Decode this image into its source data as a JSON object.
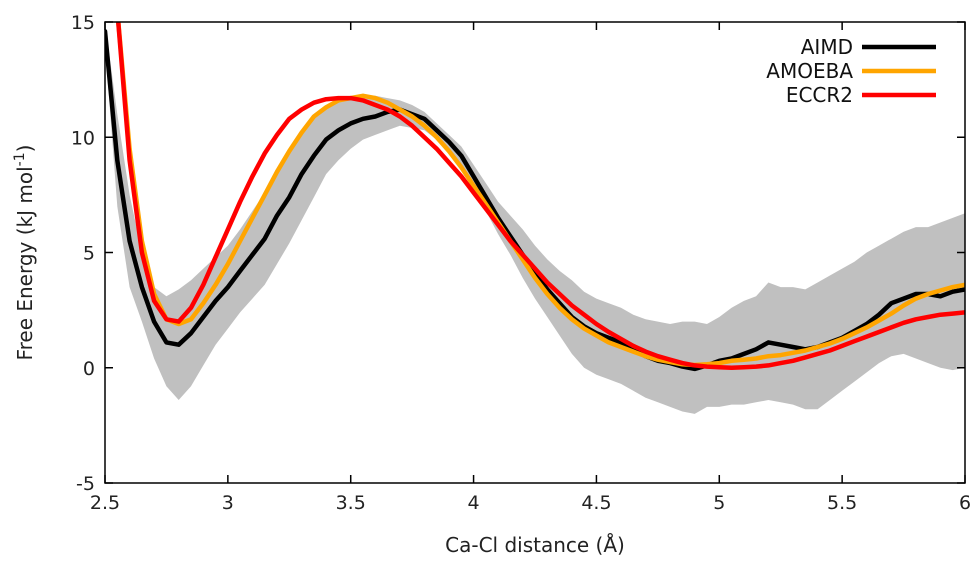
{
  "chart_data": {
    "type": "line",
    "title": "",
    "xlabel": "Ca-Cl distance (Å)",
    "ylabel": "Free Energy (kJ mol",
    "ylabel_sup": "-1",
    "ylabel_close": ")",
    "xlim": [
      2.5,
      6
    ],
    "ylim": [
      -5,
      15
    ],
    "xticks": [
      2.5,
      3,
      3.5,
      4,
      4.5,
      5,
      5.5,
      6
    ],
    "xtick_labels": [
      "2.5",
      "3",
      "3.5",
      "4",
      "4.5",
      "5",
      "5.5",
      "6"
    ],
    "yticks": [
      -5,
      0,
      5,
      10,
      15
    ],
    "ytick_labels": [
      "-5",
      "0",
      "5",
      "10",
      "15"
    ],
    "grid": false,
    "legend_position": "top-right",
    "colors": {
      "AIMD": "#000000",
      "AMOEBA": "#ffa500",
      "ECCR2": "#ff0000",
      "band": "#c0c0c0"
    },
    "series": [
      {
        "name": "AIMD",
        "x": [
          2.5,
          2.55,
          2.6,
          2.65,
          2.7,
          2.75,
          2.8,
          2.85,
          2.9,
          2.95,
          3.0,
          3.05,
          3.1,
          3.15,
          3.2,
          3.25,
          3.3,
          3.35,
          3.4,
          3.45,
          3.5,
          3.55,
          3.6,
          3.65,
          3.7,
          3.75,
          3.8,
          3.85,
          3.9,
          3.95,
          4.0,
          4.05,
          4.1,
          4.15,
          4.2,
          4.25,
          4.3,
          4.35,
          4.4,
          4.45,
          4.5,
          4.55,
          4.6,
          4.65,
          4.7,
          4.75,
          4.8,
          4.85,
          4.9,
          4.95,
          5.0,
          5.05,
          5.1,
          5.15,
          5.2,
          5.25,
          5.3,
          5.35,
          5.4,
          5.45,
          5.5,
          5.55,
          5.6,
          5.65,
          5.7,
          5.75,
          5.8,
          5.85,
          5.9,
          5.95,
          6.0
        ],
        "y": [
          14.6,
          9.0,
          5.5,
          3.5,
          2.0,
          1.1,
          1.0,
          1.5,
          2.2,
          2.9,
          3.5,
          4.2,
          4.9,
          5.6,
          6.6,
          7.4,
          8.4,
          9.2,
          9.9,
          10.3,
          10.6,
          10.8,
          10.9,
          11.1,
          11.2,
          11.0,
          10.8,
          10.3,
          9.8,
          9.2,
          8.3,
          7.4,
          6.5,
          5.7,
          4.9,
          4.1,
          3.4,
          2.8,
          2.2,
          1.8,
          1.5,
          1.3,
          1.1,
          0.8,
          0.5,
          0.3,
          0.2,
          0.05,
          -0.05,
          0.1,
          0.3,
          0.4,
          0.6,
          0.8,
          1.1,
          1.0,
          0.9,
          0.8,
          0.9,
          1.1,
          1.3,
          1.6,
          1.9,
          2.3,
          2.8,
          3.0,
          3.2,
          3.2,
          3.1,
          3.3,
          3.4
        ]
      },
      {
        "name": "AMOEBA",
        "x": [
          2.5,
          2.55,
          2.6,
          2.65,
          2.7,
          2.75,
          2.8,
          2.85,
          2.9,
          2.95,
          3.0,
          3.05,
          3.1,
          3.15,
          3.2,
          3.25,
          3.3,
          3.35,
          3.4,
          3.45,
          3.5,
          3.55,
          3.6,
          3.65,
          3.7,
          3.75,
          3.8,
          3.85,
          3.9,
          3.95,
          4.0,
          4.05,
          4.1,
          4.15,
          4.2,
          4.25,
          4.3,
          4.35,
          4.4,
          4.45,
          4.5,
          4.55,
          4.6,
          4.65,
          4.7,
          4.75,
          4.8,
          4.85,
          4.9,
          4.95,
          5.0,
          5.05,
          5.1,
          5.15,
          5.2,
          5.25,
          5.3,
          5.35,
          5.4,
          5.45,
          5.5,
          5.55,
          5.6,
          5.65,
          5.7,
          5.75,
          5.8,
          5.85,
          5.9,
          5.95,
          6.0
        ],
        "y": [
          15.5,
          15.5,
          9.5,
          5.5,
          3.2,
          2.1,
          1.9,
          2.1,
          2.8,
          3.6,
          4.5,
          5.5,
          6.5,
          7.5,
          8.5,
          9.4,
          10.2,
          10.9,
          11.3,
          11.6,
          11.7,
          11.8,
          11.7,
          11.5,
          11.2,
          10.9,
          10.5,
          10.0,
          9.4,
          8.7,
          7.9,
          7.1,
          6.3,
          5.5,
          4.7,
          3.9,
          3.2,
          2.6,
          2.1,
          1.7,
          1.4,
          1.1,
          0.9,
          0.7,
          0.5,
          0.35,
          0.25,
          0.15,
          0.12,
          0.15,
          0.2,
          0.3,
          0.35,
          0.4,
          0.5,
          0.55,
          0.65,
          0.75,
          0.9,
          1.05,
          1.25,
          1.5,
          1.75,
          2.05,
          2.35,
          2.7,
          3.0,
          3.2,
          3.35,
          3.5,
          3.6
        ]
      },
      {
        "name": "ECCR2",
        "x": [
          2.5,
          2.55,
          2.6,
          2.65,
          2.7,
          2.75,
          2.8,
          2.85,
          2.9,
          2.95,
          3.0,
          3.05,
          3.1,
          3.15,
          3.2,
          3.25,
          3.3,
          3.35,
          3.4,
          3.45,
          3.5,
          3.55,
          3.6,
          3.65,
          3.7,
          3.75,
          3.8,
          3.85,
          3.9,
          3.95,
          4.0,
          4.05,
          4.1,
          4.15,
          4.2,
          4.25,
          4.3,
          4.35,
          4.4,
          4.45,
          4.5,
          4.55,
          4.6,
          4.65,
          4.7,
          4.75,
          4.8,
          4.85,
          4.9,
          4.95,
          5.0,
          5.05,
          5.1,
          5.15,
          5.2,
          5.25,
          5.3,
          5.35,
          5.4,
          5.45,
          5.5,
          5.55,
          5.6,
          5.65,
          5.7,
          5.75,
          5.8,
          5.85,
          5.9,
          5.95,
          6.0
        ],
        "y": [
          15.5,
          15.5,
          9.0,
          5.0,
          2.9,
          2.1,
          2.0,
          2.6,
          3.6,
          4.8,
          6.0,
          7.2,
          8.3,
          9.3,
          10.1,
          10.8,
          11.2,
          11.5,
          11.65,
          11.7,
          11.7,
          11.6,
          11.4,
          11.2,
          10.9,
          10.5,
          10.0,
          9.5,
          8.9,
          8.3,
          7.6,
          6.9,
          6.2,
          5.5,
          4.9,
          4.3,
          3.7,
          3.2,
          2.7,
          2.3,
          1.9,
          1.55,
          1.25,
          0.95,
          0.7,
          0.5,
          0.35,
          0.2,
          0.1,
          0.05,
          0.02,
          0.0,
          0.02,
          0.05,
          0.1,
          0.2,
          0.3,
          0.45,
          0.6,
          0.75,
          0.95,
          1.15,
          1.35,
          1.55,
          1.75,
          1.95,
          2.1,
          2.2,
          2.3,
          2.35,
          2.4
        ]
      }
    ],
    "uncertainty_band": {
      "series": "AIMD",
      "x": [
        2.5,
        2.55,
        2.6,
        2.65,
        2.7,
        2.75,
        2.8,
        2.85,
        2.9,
        2.95,
        3.0,
        3.05,
        3.1,
        3.15,
        3.2,
        3.25,
        3.3,
        3.35,
        3.4,
        3.45,
        3.5,
        3.55,
        3.6,
        3.65,
        3.7,
        3.75,
        3.8,
        3.85,
        3.9,
        3.95,
        4.0,
        4.05,
        4.1,
        4.15,
        4.2,
        4.25,
        4.3,
        4.35,
        4.4,
        4.45,
        4.5,
        4.55,
        4.6,
        4.65,
        4.7,
        4.75,
        4.8,
        4.85,
        4.9,
        4.95,
        5.0,
        5.05,
        5.1,
        5.15,
        5.2,
        5.25,
        5.3,
        5.35,
        5.4,
        5.45,
        5.5,
        5.55,
        5.6,
        5.65,
        5.7,
        5.75,
        5.8,
        5.85,
        5.9,
        5.95,
        6.0
      ],
      "upper": [
        15.0,
        11.0,
        7.5,
        5.0,
        3.5,
        3.1,
        3.4,
        3.8,
        4.3,
        4.8,
        5.3,
        6.0,
        6.8,
        7.6,
        8.6,
        9.4,
        10.3,
        11.0,
        11.4,
        11.6,
        11.7,
        11.8,
        11.8,
        11.7,
        11.6,
        11.4,
        11.1,
        10.6,
        10.1,
        9.6,
        8.8,
        8.0,
        7.2,
        6.6,
        6.0,
        5.3,
        4.7,
        4.2,
        3.8,
        3.3,
        3.0,
        2.8,
        2.6,
        2.3,
        2.1,
        2.0,
        1.9,
        2.0,
        2.0,
        1.9,
        2.2,
        2.6,
        2.9,
        3.1,
        3.7,
        3.5,
        3.5,
        3.4,
        3.7,
        4.0,
        4.3,
        4.6,
        5.0,
        5.3,
        5.6,
        5.9,
        6.1,
        6.1,
        6.3,
        6.5,
        6.7
      ],
      "lower": [
        14.0,
        7.0,
        3.5,
        2.0,
        0.4,
        -0.8,
        -1.4,
        -0.8,
        0.1,
        1.0,
        1.7,
        2.4,
        3.0,
        3.6,
        4.5,
        5.4,
        6.4,
        7.4,
        8.4,
        9.0,
        9.5,
        9.9,
        10.1,
        10.3,
        10.5,
        10.4,
        10.3,
        9.9,
        9.4,
        8.8,
        7.8,
        6.8,
        5.8,
        4.9,
        3.9,
        3.0,
        2.2,
        1.4,
        0.6,
        0.0,
        -0.3,
        -0.5,
        -0.7,
        -1.0,
        -1.3,
        -1.5,
        -1.7,
        -1.9,
        -2.0,
        -1.7,
        -1.7,
        -1.6,
        -1.6,
        -1.5,
        -1.4,
        -1.5,
        -1.6,
        -1.8,
        -1.8,
        -1.4,
        -1.0,
        -0.6,
        -0.2,
        0.2,
        0.5,
        0.6,
        0.4,
        0.2,
        0.0,
        -0.1,
        0.0
      ]
    }
  }
}
